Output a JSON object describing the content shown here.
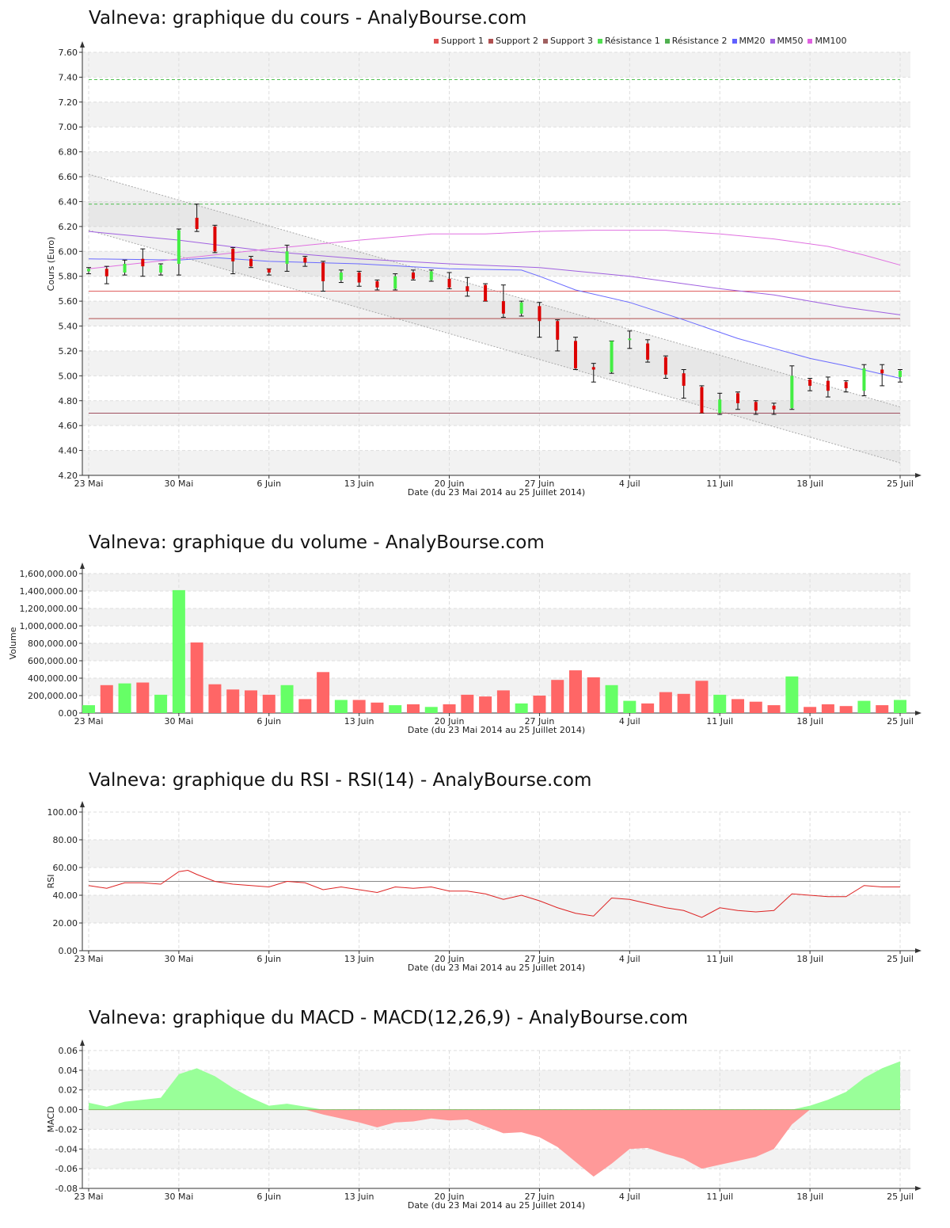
{
  "page": {
    "brand": "AnalyBourse.com"
  },
  "panels": {
    "price": {
      "title": "Valneva: graphique du cours - AnalyBourse.com"
    },
    "volume": {
      "title": "Valneva: graphique du volume - AnalyBourse.com"
    },
    "rsi": {
      "title": "Valneva: graphique du RSI - RSI(14) - AnalyBourse.com"
    },
    "macd": {
      "title": "Valneva: graphique du MACD - MACD(12,26,9) - AnalyBourse.com"
    }
  },
  "legend": [
    {
      "name": "Support 1",
      "color": "#e05050"
    },
    {
      "name": "Support 2",
      "color": "#b05050"
    },
    {
      "name": "Support 3",
      "color": "#a06060"
    },
    {
      "name": "Résistance 1",
      "color": "#50e050"
    },
    {
      "name": "Résistance 2",
      "color": "#50b050"
    },
    {
      "name": "MM20",
      "color": "#6060ff"
    },
    {
      "name": "MM50",
      "color": "#a060e0"
    },
    {
      "name": "MM100",
      "color": "#e060e0"
    }
  ],
  "chart_data": [
    {
      "type": "candlestick",
      "title": "Valneva: graphique du cours - AnalyBourse.com",
      "xlabel": "Date (du 23 Mai 2014 au 25 Juillet 2014)",
      "ylabel": "Cours (Euro)",
      "ylim": [
        4.2,
        7.6
      ],
      "yticks": [
        "4.20",
        "4.40",
        "4.60",
        "4.80",
        "5.00",
        "5.20",
        "5.40",
        "5.60",
        "5.80",
        "6.00",
        "6.20",
        "6.40",
        "6.60",
        "6.80",
        "7.00",
        "7.20",
        "7.40",
        "7.60"
      ],
      "xtick_labels": [
        {
          "i": 0,
          "label": "23 Mai"
        },
        {
          "i": 5,
          "label": "30 Mai"
        },
        {
          "i": 10,
          "label": "6 Juin"
        },
        {
          "i": 15,
          "label": "13 Juin"
        },
        {
          "i": 20,
          "label": "20 Juin"
        },
        {
          "i": 25,
          "label": "27 Juin"
        },
        {
          "i": 30,
          "label": "4 Juil"
        },
        {
          "i": 35,
          "label": "11 Juil"
        },
        {
          "i": 40,
          "label": "18 Juil"
        },
        {
          "i": 45,
          "label": "25 Juil"
        }
      ],
      "candles": [
        {
          "o": 5.84,
          "h": 5.87,
          "l": 5.82,
          "c": 5.86
        },
        {
          "o": 5.86,
          "h": 5.88,
          "l": 5.74,
          "c": 5.8
        },
        {
          "o": 5.83,
          "h": 5.93,
          "l": 5.81,
          "c": 5.9
        },
        {
          "o": 5.94,
          "h": 6.02,
          "l": 5.8,
          "c": 5.88
        },
        {
          "o": 5.83,
          "h": 5.9,
          "l": 5.81,
          "c": 5.89
        },
        {
          "o": 5.9,
          "h": 6.18,
          "l": 5.81,
          "c": 6.17
        },
        {
          "o": 6.27,
          "h": 6.38,
          "l": 6.16,
          "c": 6.18
        },
        {
          "o": 6.2,
          "h": 6.21,
          "l": 5.99,
          "c": 6.0
        },
        {
          "o": 6.02,
          "h": 6.03,
          "l": 5.82,
          "c": 5.92
        },
        {
          "o": 5.94,
          "h": 5.96,
          "l": 5.87,
          "c": 5.88
        },
        {
          "o": 5.86,
          "h": 5.86,
          "l": 5.81,
          "c": 5.83
        },
        {
          "o": 5.9,
          "h": 6.05,
          "l": 5.84,
          "c": 6.0
        },
        {
          "o": 5.95,
          "h": 5.96,
          "l": 5.88,
          "c": 5.91
        },
        {
          "o": 5.91,
          "h": 5.92,
          "l": 5.68,
          "c": 5.76
        },
        {
          "o": 5.77,
          "h": 5.85,
          "l": 5.75,
          "c": 5.83
        },
        {
          "o": 5.83,
          "h": 5.84,
          "l": 5.72,
          "c": 5.75
        },
        {
          "o": 5.76,
          "h": 5.77,
          "l": 5.69,
          "c": 5.71
        },
        {
          "o": 5.7,
          "h": 5.82,
          "l": 5.69,
          "c": 5.8
        },
        {
          "o": 5.83,
          "h": 5.85,
          "l": 5.77,
          "c": 5.78
        },
        {
          "o": 5.77,
          "h": 5.85,
          "l": 5.76,
          "c": 5.84
        },
        {
          "o": 5.78,
          "h": 5.83,
          "l": 5.7,
          "c": 5.71
        },
        {
          "o": 5.72,
          "h": 5.79,
          "l": 5.64,
          "c": 5.68
        },
        {
          "o": 5.73,
          "h": 5.74,
          "l": 5.6,
          "c": 5.6
        },
        {
          "o": 5.6,
          "h": 5.73,
          "l": 5.47,
          "c": 5.5
        },
        {
          "o": 5.5,
          "h": 5.6,
          "l": 5.48,
          "c": 5.59
        },
        {
          "o": 5.56,
          "h": 5.59,
          "l": 5.31,
          "c": 5.44
        },
        {
          "o": 5.44,
          "h": 5.45,
          "l": 5.2,
          "c": 5.29
        },
        {
          "o": 5.28,
          "h": 5.31,
          "l": 5.05,
          "c": 5.06
        },
        {
          "o": 5.07,
          "h": 5.1,
          "l": 4.95,
          "c": 5.05
        },
        {
          "o": 5.03,
          "h": 5.28,
          "l": 5.02,
          "c": 5.28
        },
        {
          "o": 5.3,
          "h": 5.36,
          "l": 5.22,
          "c": 5.3
        },
        {
          "o": 5.26,
          "h": 5.29,
          "l": 5.11,
          "c": 5.13
        },
        {
          "o": 5.15,
          "h": 5.16,
          "l": 4.98,
          "c": 5.01
        },
        {
          "o": 5.02,
          "h": 5.05,
          "l": 4.82,
          "c": 4.92
        },
        {
          "o": 4.91,
          "h": 4.92,
          "l": 4.7,
          "c": 4.7
        },
        {
          "o": 4.7,
          "h": 4.86,
          "l": 4.69,
          "c": 4.81
        },
        {
          "o": 4.86,
          "h": 4.87,
          "l": 4.73,
          "c": 4.78
        },
        {
          "o": 4.79,
          "h": 4.8,
          "l": 4.69,
          "c": 4.72
        },
        {
          "o": 4.76,
          "h": 4.78,
          "l": 4.69,
          "c": 4.73
        },
        {
          "o": 4.74,
          "h": 5.08,
          "l": 4.73,
          "c": 5.0
        },
        {
          "o": 4.97,
          "h": 4.98,
          "l": 4.88,
          "c": 4.92
        },
        {
          "o": 4.96,
          "h": 4.99,
          "l": 4.83,
          "c": 4.88
        },
        {
          "o": 4.95,
          "h": 4.96,
          "l": 4.87,
          "c": 4.9
        },
        {
          "o": 4.88,
          "h": 5.09,
          "l": 4.84,
          "c": 5.06
        },
        {
          "o": 5.05,
          "h": 5.09,
          "l": 4.92,
          "c": 5.02
        },
        {
          "o": 4.99,
          "h": 5.05,
          "l": 4.95,
          "c": 5.04
        }
      ],
      "levels": [
        {
          "name": "Support 1",
          "value": 5.68,
          "color": "#e06060"
        },
        {
          "name": "Support 2",
          "value": 5.46,
          "color": "#b05050"
        },
        {
          "name": "Support 3",
          "value": 4.7,
          "color": "#a05060"
        },
        {
          "name": "Résistance 1",
          "value": 6.38,
          "color": "#50c050"
        },
        {
          "name": "Résistance 2",
          "value": 7.38,
          "color": "#50c050"
        }
      ],
      "moving_averages": [
        {
          "name": "MM20",
          "color": "#6a6aff",
          "points": [
            [
              0,
              5.94
            ],
            [
              5,
              5.93
            ],
            [
              7,
              5.95
            ],
            [
              10,
              5.92
            ],
            [
              15,
              5.9
            ],
            [
              20,
              5.86
            ],
            [
              24,
              5.85
            ],
            [
              25,
              5.8
            ],
            [
              27,
              5.69
            ],
            [
              30,
              5.59
            ],
            [
              33,
              5.45
            ],
            [
              36,
              5.3
            ],
            [
              38,
              5.22
            ],
            [
              40,
              5.14
            ],
            [
              42,
              5.08
            ],
            [
              45,
              4.98
            ]
          ]
        },
        {
          "name": "MM50",
          "color": "#a060e0",
          "points": [
            [
              0,
              6.16
            ],
            [
              5,
              6.09
            ],
            [
              10,
              6.0
            ],
            [
              15,
              5.94
            ],
            [
              20,
              5.9
            ],
            [
              25,
              5.87
            ],
            [
              30,
              5.8
            ],
            [
              33,
              5.74
            ],
            [
              35,
              5.7
            ],
            [
              38,
              5.65
            ],
            [
              40,
              5.6
            ],
            [
              42,
              5.55
            ],
            [
              45,
              5.49
            ]
          ]
        },
        {
          "name": "MM100",
          "color": "#e070e0",
          "points": [
            [
              0,
              5.86
            ],
            [
              5,
              5.94
            ],
            [
              10,
              6.02
            ],
            [
              15,
              6.09
            ],
            [
              19,
              6.14
            ],
            [
              22,
              6.14
            ],
            [
              25,
              6.16
            ],
            [
              28,
              6.17
            ],
            [
              32,
              6.17
            ],
            [
              35,
              6.14
            ],
            [
              38,
              6.1
            ],
            [
              41,
              6.04
            ],
            [
              43,
              5.97
            ],
            [
              45,
              5.89
            ]
          ]
        }
      ],
      "channel": {
        "upper": [
          [
            0,
            6.62
          ],
          [
            45,
            4.75
          ]
        ],
        "lower": [
          [
            0,
            6.17
          ],
          [
            45,
            4.3
          ]
        ]
      }
    },
    {
      "type": "bar",
      "title": "Valneva: graphique du volume - AnalyBourse.com",
      "xlabel": "Date (du 23 Mai 2014 au 25 Juillet 2014)",
      "ylabel": "Volume",
      "ylim": [
        0,
        1600000
      ],
      "yticks": [
        "0.00",
        "200,000.00",
        "400,000.00",
        "600,000.00",
        "800,000.00",
        "1,000,000.00",
        "1,200,000.00",
        "1,400,000.00",
        "1,600,000.00"
      ],
      "values": [
        90000,
        320000,
        340000,
        350000,
        210000,
        1410000,
        810000,
        330000,
        270000,
        260000,
        210000,
        320000,
        160000,
        470000,
        150000,
        150000,
        120000,
        90000,
        100000,
        70000,
        100000,
        210000,
        190000,
        260000,
        110000,
        200000,
        380000,
        490000,
        410000,
        320000,
        140000,
        110000,
        240000,
        220000,
        370000,
        210000,
        160000,
        130000,
        90000,
        420000,
        70000,
        100000,
        80000,
        140000,
        90000,
        150000
      ]
    },
    {
      "type": "line",
      "title": "Valneva: graphique du RSI - RSI(14) - AnalyBourse.com",
      "xlabel": "Date (du 23 Mai 2014 au 25 Juillet 2014)",
      "ylabel": "RSI",
      "ylim": [
        0,
        100
      ],
      "yticks": [
        "0.00",
        "20.00",
        "40.00",
        "60.00",
        "80.00",
        "100.00"
      ],
      "reference": 50,
      "points": [
        [
          0,
          47
        ],
        [
          1,
          45
        ],
        [
          2,
          49
        ],
        [
          3,
          49
        ],
        [
          4,
          48
        ],
        [
          5,
          57
        ],
        [
          5.5,
          58
        ],
        [
          6,
          55
        ],
        [
          7,
          50
        ],
        [
          8,
          48
        ],
        [
          9,
          47
        ],
        [
          10,
          46
        ],
        [
          11,
          50
        ],
        [
          12,
          49
        ],
        [
          13,
          44
        ],
        [
          14,
          46
        ],
        [
          15,
          44
        ],
        [
          16,
          42
        ],
        [
          17,
          46
        ],
        [
          18,
          45
        ],
        [
          19,
          46
        ],
        [
          20,
          43
        ],
        [
          21,
          43
        ],
        [
          22,
          41
        ],
        [
          23,
          37
        ],
        [
          24,
          40
        ],
        [
          25,
          36
        ],
        [
          26,
          31
        ],
        [
          27,
          27
        ],
        [
          28,
          25
        ],
        [
          29,
          38
        ],
        [
          30,
          37
        ],
        [
          31,
          34
        ],
        [
          32,
          31
        ],
        [
          33,
          29
        ],
        [
          34,
          24
        ],
        [
          35,
          31
        ],
        [
          36,
          29
        ],
        [
          37,
          28
        ],
        [
          38,
          29
        ],
        [
          39,
          41
        ],
        [
          40,
          40
        ],
        [
          41,
          39
        ],
        [
          42,
          39
        ],
        [
          43,
          47
        ],
        [
          44,
          46
        ],
        [
          45,
          46
        ]
      ]
    },
    {
      "type": "area",
      "title": "Valneva: graphique du MACD - MACD(12,26,9) - AnalyBourse.com",
      "xlabel": "Date (du 23 Mai 2014 au 25 Juillet 2014)",
      "ylabel": "MACD",
      "ylim": [
        -0.08,
        0.06
      ],
      "yticks": [
        "-0.08",
        "-0.06",
        "-0.04",
        "-0.02",
        "0.00",
        "0.02",
        "0.04",
        "0.06"
      ],
      "points": [
        [
          0,
          0.007
        ],
        [
          1,
          0.003
        ],
        [
          2,
          0.008
        ],
        [
          3,
          0.01
        ],
        [
          4,
          0.012
        ],
        [
          5,
          0.036
        ],
        [
          6,
          0.042
        ],
        [
          7,
          0.034
        ],
        [
          8,
          0.022
        ],
        [
          9,
          0.012
        ],
        [
          10,
          0.004
        ],
        [
          11,
          0.006
        ],
        [
          12,
          0.003
        ],
        [
          13,
          -0.005
        ],
        [
          14,
          -0.009
        ],
        [
          15,
          -0.013
        ],
        [
          16,
          -0.018
        ],
        [
          17,
          -0.013
        ],
        [
          18,
          -0.012
        ],
        [
          19,
          -0.009
        ],
        [
          20,
          -0.011
        ],
        [
          21,
          -0.01
        ],
        [
          22,
          -0.017
        ],
        [
          23,
          -0.024
        ],
        [
          24,
          -0.023
        ],
        [
          25,
          -0.028
        ],
        [
          26,
          -0.038
        ],
        [
          27,
          -0.053
        ],
        [
          28,
          -0.068
        ],
        [
          29,
          -0.055
        ],
        [
          30,
          -0.04
        ],
        [
          31,
          -0.039
        ],
        [
          32,
          -0.045
        ],
        [
          33,
          -0.05
        ],
        [
          34,
          -0.06
        ],
        [
          35,
          -0.056
        ],
        [
          36,
          -0.052
        ],
        [
          37,
          -0.048
        ],
        [
          38,
          -0.04
        ],
        [
          39,
          -0.015
        ],
        [
          40,
          0.004
        ],
        [
          41,
          0.01
        ],
        [
          42,
          0.018
        ],
        [
          43,
          0.032
        ],
        [
          44,
          0.042
        ],
        [
          45,
          0.049
        ]
      ]
    }
  ]
}
